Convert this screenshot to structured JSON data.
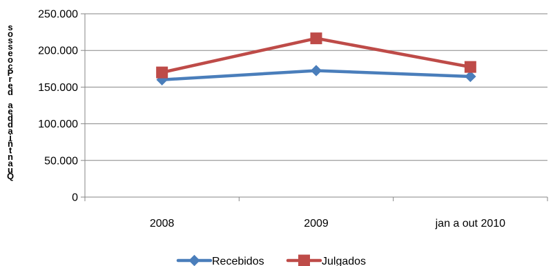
{
  "chart_data": {
    "type": "line",
    "categories": [
      "2008",
      "2009",
      "jan a out 2010"
    ],
    "series": [
      {
        "name": "Recebidos",
        "values": [
          160000,
          172500,
          164500
        ],
        "color": "#4A7EBB",
        "marker": "diamond"
      },
      {
        "name": "Julgados",
        "values": [
          170000,
          216500,
          177500
        ],
        "color": "#BE4B48",
        "marker": "square"
      }
    ],
    "yticks": [
      "0",
      "50.000",
      "100.000",
      "150.000",
      "200.000",
      "250.000"
    ],
    "ylim": [
      0,
      250000
    ],
    "ylabel": "Quantidade de Processos",
    "ylabel_rendered": "sosseocPred aeddaiñtnauQ",
    "grid": true,
    "legend_position": "bottom"
  }
}
